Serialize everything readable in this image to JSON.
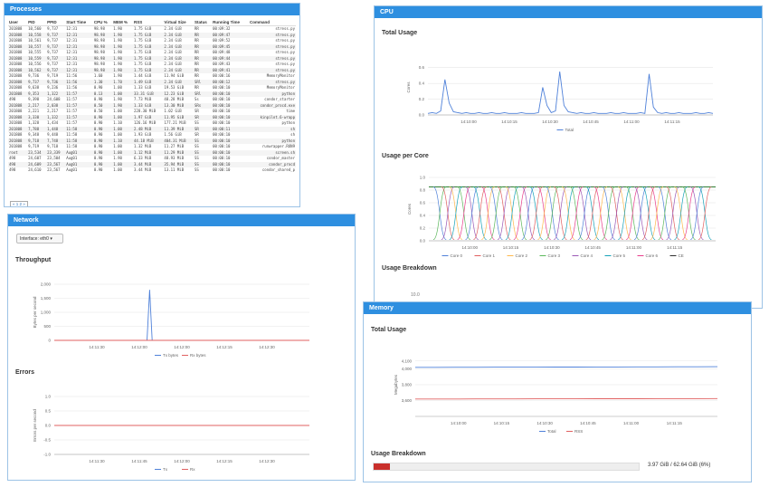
{
  "processes": {
    "title": "Processes",
    "columns": [
      "User",
      "PID",
      "PPID",
      "Start Time",
      "CPU %",
      "MEM %",
      "RSS",
      "Virtual Size",
      "Status",
      "Running Time",
      "Command"
    ],
    "rows": [
      [
        "201808",
        "10,560",
        "9,737",
        "12:31",
        "98.98",
        "1.90",
        "1.75 GiB",
        "2.34 GiB",
        "RR",
        "00:09:32",
        "stress.py"
      ],
      [
        "201808",
        "10,558",
        "9,737",
        "12:31",
        "98.98",
        "1.90",
        "1.75 GiB",
        "2.34 GiB",
        "RR",
        "00:09:47",
        "stress.py"
      ],
      [
        "201808",
        "10,561",
        "9,737",
        "12:31",
        "98.98",
        "1.90",
        "1.75 GiB",
        "2.34 GiB",
        "RR",
        "00:09:52",
        "stress.py"
      ],
      [
        "201808",
        "10,557",
        "9,737",
        "12:31",
        "98.98",
        "1.90",
        "1.75 GiB",
        "2.34 GiB",
        "RR",
        "00:09:45",
        "stress.py"
      ],
      [
        "201808",
        "10,555",
        "9,737",
        "12:31",
        "98.98",
        "1.90",
        "1.75 GiB",
        "2.34 GiB",
        "RR",
        "00:09:48",
        "stress.py"
      ],
      [
        "201808",
        "10,559",
        "9,737",
        "12:31",
        "98.98",
        "1.90",
        "1.75 GiB",
        "2.34 GiB",
        "RR",
        "00:09:44",
        "stress.py"
      ],
      [
        "201808",
        "10,556",
        "9,737",
        "12:31",
        "98.98",
        "1.90",
        "1.75 GiB",
        "2.34 GiB",
        "RR",
        "00:09:43",
        "stress.py"
      ],
      [
        "201808",
        "10,562",
        "9,737",
        "12:31",
        "98.98",
        "1.90",
        "1.75 GiB",
        "2.34 GiB",
        "RR",
        "00:09:41",
        "stress.py"
      ],
      [
        "201808",
        "9,736",
        "9,719",
        "11:56",
        "1.60",
        "1.90",
        "1.44 GiB",
        "11.94 GiB",
        "RR",
        "00:00:16",
        "MemoryMonitor"
      ],
      [
        "201808",
        "9,737",
        "9,736",
        "11:56",
        "1.30",
        "1.70",
        "1.49 GiB",
        "2.34 GiB",
        "SRl",
        "00:00:12",
        "stress.py"
      ],
      [
        "201808",
        "9,638",
        "9,236",
        "11:56",
        "0.90",
        "1.00",
        "1.33 GiB",
        "19.53 GiB",
        "RR",
        "00:00:10",
        "MemoryMonitor"
      ],
      [
        "201808",
        "9,353",
        "1,322",
        "11:57",
        "0.13",
        "1.00",
        "33.31 GiB",
        "12.23 GiB",
        "SRl",
        "00:00:10",
        "python"
      ],
      [
        "498",
        "9,398",
        "24,608",
        "11:57",
        "0.90",
        "1.90",
        "7.73 MiB",
        "48.28 MiB",
        "Ss",
        "00:00:10",
        "condor_starter"
      ],
      [
        "201808",
        "2,217",
        "2,038",
        "11:57",
        "0.50",
        "1.90",
        "1.33 GiB",
        "13.30 MiB",
        "SRs",
        "00:00:10",
        "condor_procd.exe"
      ],
      [
        "201808",
        "2,221",
        "2,217",
        "11:57",
        "0.50",
        "1.00",
        "228.30 MiB",
        "1.02 GiB",
        "SR",
        "00:00:10",
        "time"
      ],
      [
        "201808",
        "3,330",
        "1,332",
        "11:57",
        "0.90",
        "1.00",
        "1.97 GiB",
        "11.95 GiB",
        "SR",
        "00:00:10",
        "kinpilot.6-wrapp"
      ],
      [
        "201808",
        "1,328",
        "1,434",
        "11:57",
        "0.90",
        "1.10",
        "126.16 MiB",
        "177.21 MiB",
        "SS",
        "00:00:10",
        "python"
      ],
      [
        "201808",
        "7,788",
        "1,448",
        "11:58",
        "0.90",
        "1.00",
        "2.48 MiB",
        "11.39 MiB",
        "SR",
        "00:00:11",
        "sh"
      ],
      [
        "201808",
        "9,348",
        "9,448",
        "11:58",
        "0.90",
        "1.00",
        "1.93 GiB",
        "1.56 GiB",
        "SR",
        "00:00:10",
        "sh"
      ],
      [
        "201808",
        "9,718",
        "7,748",
        "11:58",
        "0.90",
        "1.10",
        "44.18 MiB",
        "404.31 MiB",
        "SS",
        "00:00:10",
        "python"
      ],
      [
        "201808",
        "9,719",
        "9,718",
        "11:58",
        "0.90",
        "1.00",
        "1.32 MiB",
        "11.27 MiB",
        "SS",
        "00:00:10",
        "runwrapper.RUN9"
      ],
      [
        "root",
        "23,534",
        "23,339",
        "Aug01",
        "0.90",
        "1.00",
        "1.12 MiB",
        "11.29 MiB",
        "SS",
        "00:00:10",
        "screen.sh"
      ],
      [
        "498",
        "24,607",
        "23,504",
        "Aug01",
        "0.90",
        "1.90",
        "6.33 MiB",
        "48.93 MiB",
        "SS",
        "00:00:10",
        "condor_master"
      ],
      [
        "498",
        "24,609",
        "23,567",
        "Aug01",
        "0.90",
        "1.00",
        "3.44 MiB",
        "35.94 MiB",
        "SS",
        "00:00:10",
        "condor_procd"
      ],
      [
        "498",
        "24,610",
        "23,567",
        "Aug01",
        "0.90",
        "1.00",
        "3.44 MiB",
        "13.11 MiB",
        "SS",
        "00:00:10",
        "condor_shared_p"
      ]
    ],
    "pager": "« 1 2 »"
  },
  "network": {
    "title": "Network",
    "interface_label": "Interface: eth0 ▾",
    "throughput_title": "Throughput",
    "errors_title": "Errors"
  },
  "cpu": {
    "title": "CPU",
    "total_title": "Total Usage",
    "per_core_title": "Usage per Core",
    "breakdown_title": "Usage Breakdown",
    "breakdown_tick": "10.0"
  },
  "memory": {
    "title": "Memory",
    "total_title": "Total Usage",
    "breakdown_title": "Usage Breakdown",
    "breakdown_text": "3.97 GiB / 62.64 GiB (6%)",
    "usage_fraction": 0.06,
    "bar_color": "#c9302c"
  },
  "chart_data": [
    {
      "id": "net-throughput",
      "type": "line",
      "title": "Throughput",
      "ylabel": "Bytes per second",
      "ylim": [
        0,
        2000
      ],
      "yticks": [
        "0",
        "500",
        "1,000",
        "1,500",
        "2,000"
      ],
      "xticks": [
        "14:11:30",
        "14:12:00",
        "14:12:00",
        "14:12:15",
        "14:12:30"
      ],
      "legend_position": "bottom",
      "series": [
        {
          "name": "Tx bytes",
          "color": "#4f81d9",
          "values": [
            0,
            0,
            0,
            0,
            0,
            0,
            0,
            0,
            0,
            0,
            0,
            0,
            0,
            0,
            0,
            0,
            0,
            0,
            0,
            0,
            0,
            0,
            0,
            0,
            0,
            0,
            0,
            0,
            0,
            0,
            0,
            0,
            0,
            0,
            0,
            0,
            0,
            1800,
            0,
            0,
            0,
            0,
            0,
            0,
            0,
            0,
            0,
            0,
            0,
            0,
            0,
            0,
            0,
            0,
            0,
            0,
            0,
            0,
            0,
            0,
            0,
            0,
            0,
            0,
            0,
            0,
            0,
            0,
            0,
            0,
            0,
            0,
            0,
            0,
            0,
            0,
            0,
            0,
            0,
            0,
            0,
            0,
            0,
            0,
            0,
            0,
            0,
            0,
            0,
            0,
            0,
            0,
            0,
            0,
            0,
            0,
            0,
            0,
            0,
            0
          ]
        },
        {
          "name": "Rx bytes",
          "color": "#e06060",
          "values": [
            0,
            0,
            0,
            0,
            0,
            0,
            0,
            0,
            0,
            0,
            0,
            0,
            0,
            0,
            0,
            0,
            0,
            0,
            0,
            0,
            0,
            0,
            0,
            0,
            0,
            0,
            0,
            0,
            0,
            0,
            0,
            0,
            0,
            0,
            0,
            0,
            0,
            0,
            0,
            0,
            0,
            0,
            0,
            0,
            0,
            0,
            0,
            0,
            0,
            0,
            0,
            0,
            0,
            0,
            0,
            0,
            0,
            0,
            0,
            0,
            0,
            0,
            0,
            0,
            0,
            0,
            0,
            0,
            0,
            0,
            0,
            0,
            0,
            0,
            0,
            0,
            0,
            0,
            0,
            0,
            0,
            0,
            0,
            0,
            0,
            0,
            0,
            0,
            0,
            0,
            0,
            0,
            0,
            0,
            0,
            0,
            0,
            0,
            0,
            0
          ]
        }
      ]
    },
    {
      "id": "net-errors",
      "type": "line",
      "title": "Errors",
      "ylabel": "Errors per second",
      "ylim": [
        -1,
        1
      ],
      "yticks": [
        "-1.0",
        "-0.5",
        "0.0",
        "0.5",
        "1.0"
      ],
      "xticks": [
        "14:11:30",
        "14:11:45",
        "14:12:00",
        "14:12:15",
        "14:12:30"
      ],
      "legend_position": "bottom",
      "series": [
        {
          "name": "Tx",
          "color": "#4f81d9",
          "values": [
            0,
            0,
            0,
            0,
            0,
            0,
            0,
            0,
            0,
            0,
            0,
            0,
            0,
            0,
            0,
            0,
            0,
            0,
            0,
            0,
            0,
            0,
            0,
            0,
            0,
            0,
            0,
            0,
            0,
            0,
            0,
            0,
            0,
            0,
            0,
            0,
            0,
            0,
            0,
            0,
            0,
            0,
            0,
            0,
            0,
            0,
            0,
            0,
            0,
            0
          ]
        },
        {
          "name": "Rx",
          "color": "#e06060",
          "values": [
            0,
            0,
            0,
            0,
            0,
            0,
            0,
            0,
            0,
            0,
            0,
            0,
            0,
            0,
            0,
            0,
            0,
            0,
            0,
            0,
            0,
            0,
            0,
            0,
            0,
            0,
            0,
            0,
            0,
            0,
            0,
            0,
            0,
            0,
            0,
            0,
            0,
            0,
            0,
            0,
            0,
            0,
            0,
            0,
            0,
            0,
            0,
            0,
            0,
            0
          ]
        }
      ]
    },
    {
      "id": "cpu-total",
      "type": "line",
      "title": "Total Usage",
      "ylabel": "Cores",
      "ylim": [
        0,
        0.7
      ],
      "yticks": [
        "0.0",
        "0.2",
        "0.4",
        "0.6"
      ],
      "xticks": [
        "14:10:00",
        "14:10:15",
        "14:10:30",
        "14:10:45",
        "14:11:00",
        "14:11:15"
      ],
      "legend_position": "bottom",
      "series": [
        {
          "name": "Total",
          "color": "#4f81d9",
          "values": [
            0.02,
            0.03,
            0.02,
            0.05,
            0.45,
            0.15,
            0.04,
            0.03,
            0.02,
            0.03,
            0.02,
            0.02,
            0.03,
            0.02,
            0.02,
            0.03,
            0.02,
            0.02,
            0.03,
            0.02,
            0.02,
            0.02,
            0.03,
            0.02,
            0.02,
            0.02,
            0.03,
            0.35,
            0.12,
            0.03,
            0.05,
            0.55,
            0.12,
            0.04,
            0.03,
            0.02,
            0.03,
            0.02,
            0.02,
            0.03,
            0.02,
            0.02,
            0.02,
            0.03,
            0.02,
            0.02,
            0.03,
            0.02,
            0.02,
            0.02,
            0.03,
            0.02,
            0.52,
            0.1,
            0.03,
            0.02,
            0.03,
            0.02,
            0.02,
            0.03,
            0.02,
            0.02,
            0.02,
            0.03,
            0.02,
            0.02,
            0.03,
            0.02
          ]
        }
      ]
    },
    {
      "id": "cpu-per-core",
      "type": "line",
      "title": "Usage per Core",
      "ylabel": "Cores",
      "ylim": [
        0,
        1.0
      ],
      "yticks": [
        "0.0",
        "0.2",
        "0.4",
        "0.6",
        "0.8",
        "1.0"
      ],
      "xticks": [
        "14:10:00",
        "14:10:15",
        "14:10:30",
        "14:10:45",
        "14:11:00",
        "14:11:15"
      ],
      "legend_position": "bottom",
      "series": [
        {
          "name": "Core 0",
          "color": "#4f81d9"
        },
        {
          "name": "Core 1",
          "color": "#e06060"
        },
        {
          "name": "Core 2",
          "color": "#ffb84d"
        },
        {
          "name": "Core 3",
          "color": "#5cb85c"
        },
        {
          "name": "Core 4",
          "color": "#9b59b6"
        },
        {
          "name": "Core 5",
          "color": "#17a2b8"
        },
        {
          "name": "Core 6",
          "color": "#e83e8c"
        },
        {
          "name": "CE",
          "color": "#2e2e2e"
        }
      ]
    },
    {
      "id": "mem-total",
      "type": "line",
      "title": "Total Usage",
      "ylabel": "Megabytes",
      "ylim": [
        3400,
        4200
      ],
      "yticks": [
        "3,600",
        "3,800",
        "4,000",
        "4,100"
      ],
      "xticks": [
        "14:10:00",
        "14:10:15",
        "14:10:30",
        "14:10:45",
        "14:11:00",
        "14:11:15"
      ],
      "legend_position": "bottom",
      "series": [
        {
          "name": "Total",
          "color": "#4f81d9",
          "values": [
            4020,
            4020,
            4021,
            4021,
            4022,
            4022,
            4022,
            4023,
            4023,
            4024,
            4024,
            4025,
            4025,
            4026,
            4026,
            4027
          ]
        },
        {
          "name": "RSS",
          "color": "#e06060",
          "values": [
            3620,
            3620,
            3620,
            3621,
            3621,
            3621,
            3622,
            3622,
            3622,
            3623,
            3623,
            3623,
            3624,
            3624,
            3624,
            3625
          ]
        }
      ]
    }
  ]
}
